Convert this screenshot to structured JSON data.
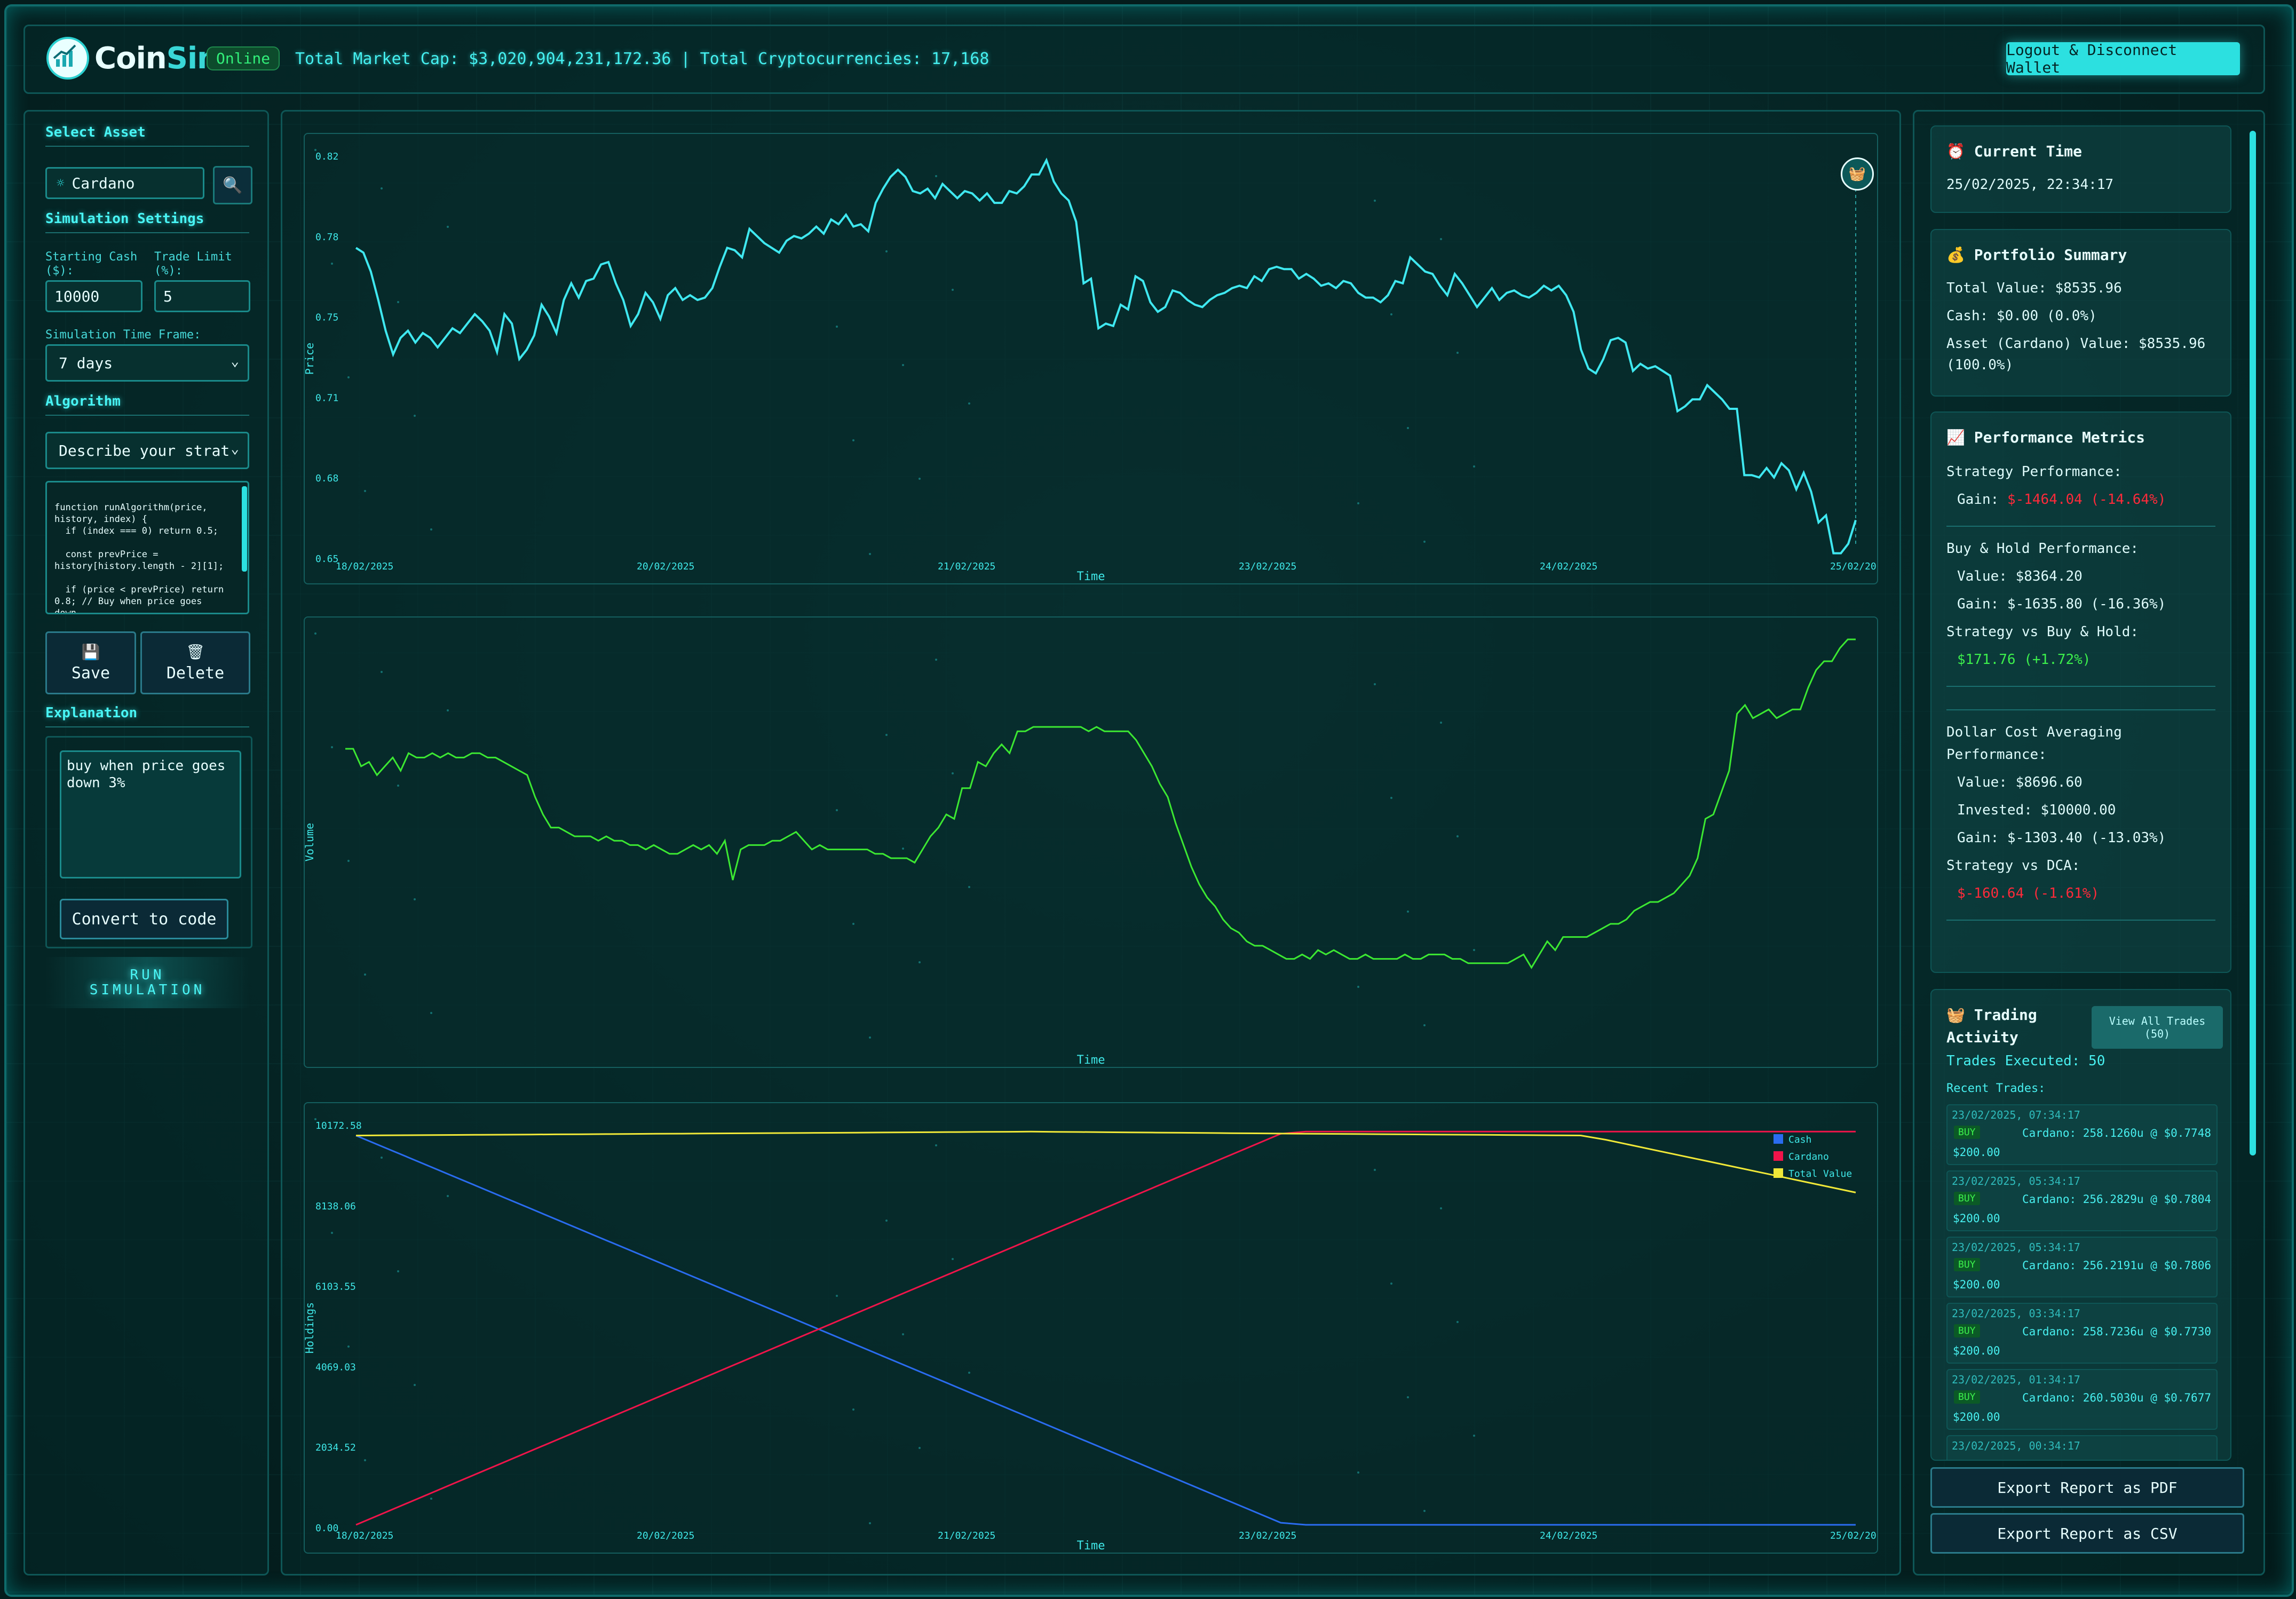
{
  "header": {
    "logo_coin": "Coin",
    "logo_sim": "Sim",
    "status": "Online",
    "market_info": "Total Market Cap: $3,020,904,231,172.36 | Total Cryptocurrencies: 17,168",
    "logout_label": "Logout & Disconnect Wallet"
  },
  "left": {
    "select_asset_title": "Select Asset",
    "asset_value": "Cardano",
    "sim_settings_title": "Simulation Settings",
    "starting_cash_label": "Starting Cash ($):",
    "starting_cash_value": "10000",
    "trade_limit_label": "Trade Limit (%):",
    "trade_limit_value": "5",
    "timeframe_label": "Simulation Time Frame:",
    "timeframe_value": "7 days",
    "algorithm_title": "Algorithm",
    "strategy_select": "Describe your strategy",
    "code": "function runAlgorithm(price,\nhistory, index) {\n  if (index === 0) return 0.5;\n\n  const prevPrice =\nhistory[history.length - 2][1];\n\n  if (price < prevPrice) return\n0.8; // Buy when price goes\ndown",
    "save_label": "Save",
    "delete_label": "Delete",
    "explanation_title": "Explanation",
    "explanation_text": "buy when price goes down 3%",
    "convert_label": "Convert to code",
    "run_label_1": "RUN",
    "run_label_2": "SIMULATION"
  },
  "chart_data": [
    {
      "type": "line",
      "xlabel": "Time",
      "ylabel": "Price",
      "x_ticks": [
        "18/02/2025",
        "20/02/2025",
        "21/02/2025",
        "23/02/2025",
        "24/02/2025",
        "25/02/20"
      ],
      "y_ticks": [
        "0.82",
        "0.78",
        "0.75",
        "0.71",
        "0.68",
        "0.65"
      ],
      "ylim": [
        0.65,
        0.82
      ],
      "color": "#3fe8f0",
      "series": [
        {
          "values": [
            0.78,
            0.778,
            0.77,
            0.758,
            0.745,
            0.735,
            0.742,
            0.745,
            0.74,
            0.744,
            0.742,
            0.738,
            0.742,
            0.746,
            0.744,
            0.748,
            0.752,
            0.749,
            0.745,
            0.736,
            0.752,
            0.748,
            0.733,
            0.737,
            0.743,
            0.756,
            0.751,
            0.744,
            0.758,
            0.765,
            0.759,
            0.766,
            0.767,
            0.773,
            0.774,
            0.765,
            0.758,
            0.747,
            0.752,
            0.761,
            0.757,
            0.75,
            0.76,
            0.763,
            0.758,
            0.76,
            0.758,
            0.759,
            0.763,
            0.772,
            0.78,
            0.779,
            0.776,
            0.788,
            0.785,
            0.782,
            0.78,
            0.778,
            0.783,
            0.785,
            0.784,
            0.786,
            0.789,
            0.786,
            0.792,
            0.79,
            0.794,
            0.789,
            0.79,
            0.787,
            0.799,
            0.805,
            0.81,
            0.813,
            0.81,
            0.804,
            0.803,
            0.805,
            0.801,
            0.807,
            0.804,
            0.801,
            0.804,
            0.803,
            0.8,
            0.803,
            0.799,
            0.799,
            0.804,
            0.803,
            0.806,
            0.811,
            0.811,
            0.817,
            0.808,
            0.803,
            0.8,
            0.791,
            0.765,
            0.767,
            0.746,
            0.748,
            0.747,
            0.756,
            0.754,
            0.768,
            0.766,
            0.757,
            0.753,
            0.755,
            0.762,
            0.761,
            0.758,
            0.756,
            0.755,
            0.758,
            0.76,
            0.761,
            0.763,
            0.764,
            0.763,
            0.768,
            0.766,
            0.771,
            0.772,
            0.771,
            0.771,
            0.767,
            0.769,
            0.767,
            0.764,
            0.765,
            0.763,
            0.766,
            0.765,
            0.761,
            0.759,
            0.759,
            0.757,
            0.76,
            0.766,
            0.765,
            0.776,
            0.773,
            0.77,
            0.769,
            0.764,
            0.76,
            0.769,
            0.765,
            0.76,
            0.755,
            0.759,
            0.763,
            0.758,
            0.761,
            0.762,
            0.76,
            0.759,
            0.761,
            0.764,
            0.762,
            0.764,
            0.76,
            0.753,
            0.737,
            0.729,
            0.727,
            0.733,
            0.741,
            0.742,
            0.74,
            0.728,
            0.731,
            0.729,
            0.73,
            0.728,
            0.726,
            0.711,
            0.713,
            0.716,
            0.716,
            0.722,
            0.719,
            0.716,
            0.712,
            0.712,
            0.684,
            0.684,
            0.683,
            0.687,
            0.683,
            0.689,
            0.686,
            0.678,
            0.685,
            0.677,
            0.664,
            0.667,
            0.651,
            0.651,
            0.655,
            0.665
          ]
        }
      ]
    },
    {
      "type": "line",
      "xlabel": "Time",
      "ylabel": "Volume",
      "color": "#3ce832",
      "series": [
        {
          "values": [
            0.7,
            0.7,
            0.66,
            0.67,
            0.64,
            0.66,
            0.68,
            0.65,
            0.69,
            0.68,
            0.68,
            0.69,
            0.68,
            0.69,
            0.68,
            0.68,
            0.69,
            0.69,
            0.68,
            0.68,
            0.67,
            0.66,
            0.65,
            0.64,
            0.59,
            0.55,
            0.52,
            0.52,
            0.51,
            0.5,
            0.5,
            0.5,
            0.49,
            0.5,
            0.49,
            0.49,
            0.48,
            0.48,
            0.47,
            0.48,
            0.47,
            0.46,
            0.46,
            0.47,
            0.48,
            0.47,
            0.48,
            0.46,
            0.49,
            0.4,
            0.47,
            0.48,
            0.48,
            0.48,
            0.49,
            0.49,
            0.5,
            0.51,
            0.49,
            0.47,
            0.48,
            0.47,
            0.47,
            0.47,
            0.47,
            0.47,
            0.47,
            0.46,
            0.46,
            0.45,
            0.45,
            0.45,
            0.44,
            0.47,
            0.5,
            0.52,
            0.55,
            0.54,
            0.61,
            0.61,
            0.67,
            0.66,
            0.69,
            0.71,
            0.69,
            0.74,
            0.74,
            0.75,
            0.75,
            0.75,
            0.75,
            0.75,
            0.75,
            0.75,
            0.74,
            0.75,
            0.74,
            0.74,
            0.74,
            0.74,
            0.72,
            0.69,
            0.66,
            0.62,
            0.59,
            0.53,
            0.48,
            0.43,
            0.39,
            0.36,
            0.34,
            0.31,
            0.29,
            0.28,
            0.26,
            0.25,
            0.25,
            0.24,
            0.23,
            0.22,
            0.22,
            0.23,
            0.22,
            0.24,
            0.23,
            0.24,
            0.23,
            0.22,
            0.22,
            0.23,
            0.22,
            0.22,
            0.22,
            0.22,
            0.23,
            0.22,
            0.22,
            0.23,
            0.23,
            0.23,
            0.22,
            0.22,
            0.21,
            0.21,
            0.21,
            0.21,
            0.21,
            0.21,
            0.22,
            0.23,
            0.2,
            0.23,
            0.26,
            0.24,
            0.27,
            0.27,
            0.27,
            0.27,
            0.28,
            0.29,
            0.3,
            0.3,
            0.31,
            0.33,
            0.34,
            0.35,
            0.35,
            0.36,
            0.37,
            0.39,
            0.41,
            0.45,
            0.54,
            0.55,
            0.6,
            0.65,
            0.78,
            0.8,
            0.77,
            0.78,
            0.79,
            0.77,
            0.78,
            0.79,
            0.79,
            0.84,
            0.88,
            0.9,
            0.9,
            0.93,
            0.95,
            0.95
          ]
        }
      ]
    },
    {
      "type": "line",
      "xlabel": "Time",
      "ylabel": "Holdings",
      "x_ticks": [
        "18/02/2025",
        "20/02/2025",
        "21/02/2025",
        "23/02/2025",
        "24/02/2025",
        "25/02/20"
      ],
      "y_ticks": [
        "10172.58",
        "8138.06",
        "6103.55",
        "4069.03",
        "2034.52",
        "0.00"
      ],
      "ylim": [
        0,
        10172.58
      ],
      "legend_position": "top-right",
      "series": [
        {
          "name": "Cash",
          "color": "#2a6cf0",
          "points": [
            [
              0,
              10000
            ],
            [
              0.62,
              0
            ],
            [
              1,
              0
            ]
          ]
        },
        {
          "name": "Cardano",
          "color": "#f0144a",
          "points": [
            [
              0,
              0
            ],
            [
              0.62,
              10100
            ],
            [
              1,
              10100
            ]
          ]
        },
        {
          "name": "Total Value",
          "color": "#f0e838",
          "points": [
            [
              0,
              10000
            ],
            [
              0.45,
              10100
            ],
            [
              0.62,
              10050
            ],
            [
              0.82,
              10000
            ],
            [
              1,
              8536
            ]
          ]
        }
      ]
    }
  ],
  "right": {
    "current_time_title": "Current Time",
    "current_time": "25/02/2025, 22:34:17",
    "portfolio_title": "Portfolio Summary",
    "total_value": "Total Value: $8535.96",
    "cash": "Cash: $0.00 (0.0%)",
    "asset_value_1": "Asset (Cardano) Value: $8535.96",
    "asset_value_2": "(100.0%)",
    "perf_title": "Performance Metrics",
    "strategy_perf": "Strategy Performance:",
    "strategy_gain_label": "Gain:",
    "strategy_gain": "$-1464.04 (-14.64%)",
    "bh_perf": "Buy & Hold Performance:",
    "bh_value": "Value: $8364.20",
    "bh_gain": "Gain: $-1635.80 (-16.36%)",
    "svbh": "Strategy vs Buy & Hold:",
    "svbh_value": "$171.76 (+1.72%)",
    "dca_title_1": "Dollar Cost Averaging",
    "dca_title_2": "Performance:",
    "dca_value": "Value: $8696.60",
    "dca_invested": "Invested: $10000.00",
    "dca_gain": "Gain: $-1303.40 (-13.03%)",
    "svdca": "Strategy vs DCA:",
    "svdca_value": "$-160.64 (-1.61%)",
    "trading_title_1": "Trading",
    "trading_title_2": "Activity",
    "view_all_1": "View All Trades",
    "view_all_2": "(50)",
    "trades_executed": "Trades Executed: 50",
    "recent_trades": "Recent Trades:",
    "trades": [
      {
        "ts": "23/02/2025, 07:34:17",
        "type": "BUY",
        "desc": "Cardano: 258.1260u @ $0.7748",
        "amt": "$200.00"
      },
      {
        "ts": "23/02/2025, 05:34:17",
        "type": "BUY",
        "desc": "Cardano: 256.2829u @ $0.7804",
        "amt": "$200.00"
      },
      {
        "ts": "23/02/2025, 05:34:17",
        "type": "BUY",
        "desc": "Cardano: 256.2191u @ $0.7806",
        "amt": "$200.00"
      },
      {
        "ts": "23/02/2025, 03:34:17",
        "type": "BUY",
        "desc": "Cardano: 258.7236u @ $0.7730",
        "amt": "$200.00"
      },
      {
        "ts": "23/02/2025, 01:34:17",
        "type": "BUY",
        "desc": "Cardano: 260.5030u @ $0.7677",
        "amt": "$200.00"
      },
      {
        "ts": "23/02/2025, 00:34:17",
        "type": "",
        "desc": "",
        "amt": ""
      }
    ],
    "export_pdf": "Export Report as PDF",
    "export_csv": "Export Report as CSV"
  }
}
